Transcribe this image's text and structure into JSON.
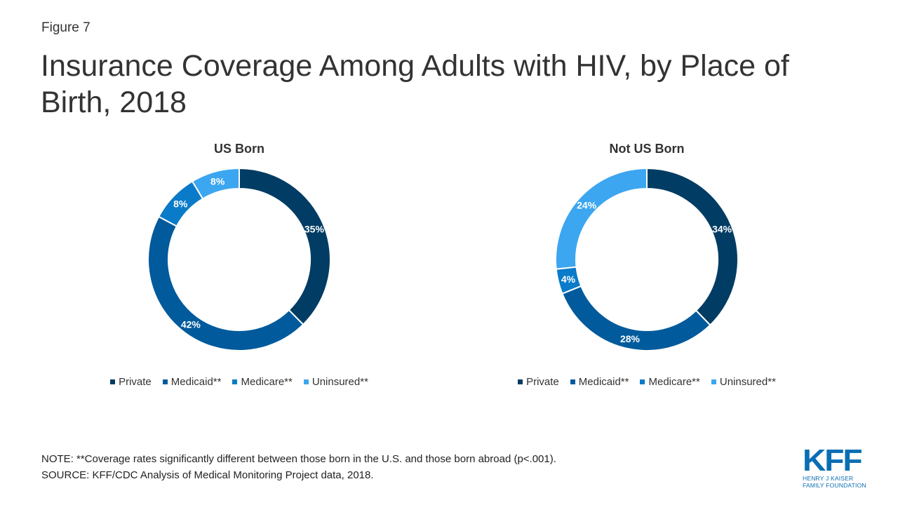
{
  "figure_label": "Figure 7",
  "title": "Insurance Coverage Among Adults with HIV, by Place of Birth, 2018",
  "colors": {
    "private": "#003c64",
    "medicaid": "#005a9c",
    "medicare": "#0a7bc8",
    "uninsured": "#3ca6f0"
  },
  "chart_data": [
    {
      "type": "pie",
      "title": "US Born",
      "categories": [
        "Private",
        "Medicaid**",
        "Medicare**",
        "Uninsured**"
      ],
      "values": [
        35,
        42,
        8,
        8
      ],
      "labels": [
        "35%",
        "42%",
        "8%",
        "8%"
      ],
      "donut": true,
      "legend": "bottom"
    },
    {
      "type": "pie",
      "title": "Not US Born",
      "categories": [
        "Private",
        "Medicaid**",
        "Medicare**",
        "Uninsured**"
      ],
      "values": [
        34,
        28,
        4,
        24
      ],
      "labels": [
        "34%",
        "28%",
        "4%",
        "24%"
      ],
      "donut": true,
      "legend": "bottom"
    }
  ],
  "footer": {
    "note": "NOTE: **Coverage rates significantly different between those born in the U.S. and those born abroad (p<.001).",
    "source": "SOURCE: KFF/CDC Analysis of Medical Monitoring Project data, 2018."
  },
  "logo": {
    "text": "KFF",
    "line1": "HENRY J KAISER",
    "line2": "FAMILY FOUNDATION"
  }
}
